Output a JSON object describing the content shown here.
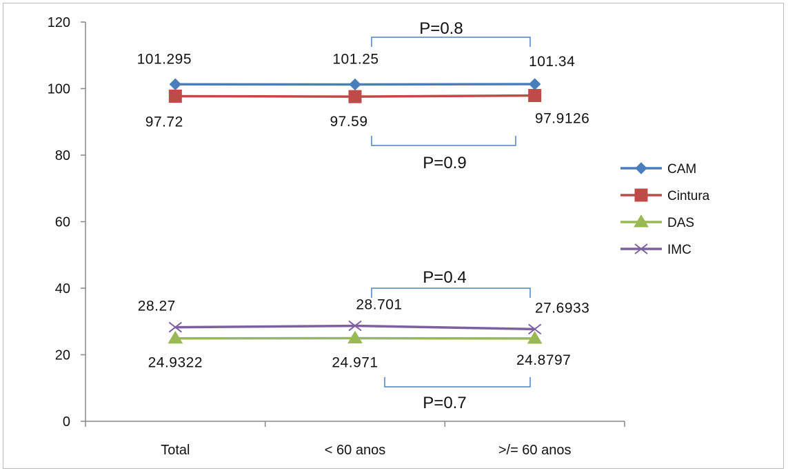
{
  "chart_data": {
    "type": "line",
    "categories": [
      "Total",
      "< 60 anos",
      ">/= 60 anos"
    ],
    "ylim": [
      0,
      120
    ],
    "yticks": [
      0,
      20,
      40,
      60,
      80,
      100,
      120
    ],
    "grid": false,
    "legend_position": "right",
    "series": [
      {
        "name": "CAM",
        "values": [
          101.295,
          101.25,
          101.34
        ],
        "labels": [
          "101.295",
          "101.25",
          "101.34"
        ],
        "color": "#4a7ebb",
        "marker": "diamond"
      },
      {
        "name": "Cintura",
        "values": [
          97.72,
          97.59,
          97.9126
        ],
        "labels": [
          "97.72",
          "97.59",
          "97.9126"
        ],
        "color": "#be4b48",
        "marker": "square"
      },
      {
        "name": "DAS",
        "values": [
          24.9322,
          24.971,
          24.8797
        ],
        "labels": [
          "24.9322",
          "24.971",
          "24.8797"
        ],
        "color": "#98b954",
        "marker": "triangle"
      },
      {
        "name": "IMC",
        "values": [
          28.27,
          28.701,
          27.6933
        ],
        "labels": [
          "28.27",
          "28.701",
          "27.6933"
        ],
        "color": "#7d60a0",
        "marker": "x"
      }
    ],
    "annotations": [
      {
        "text": "P=0.8",
        "series": "CAM"
      },
      {
        "text": "P=0.9",
        "series": "Cintura"
      },
      {
        "text": "P=0.4",
        "series": "IMC"
      },
      {
        "text": "P=0.7",
        "series": "DAS"
      }
    ],
    "bracket_color": "#4f81bd"
  }
}
